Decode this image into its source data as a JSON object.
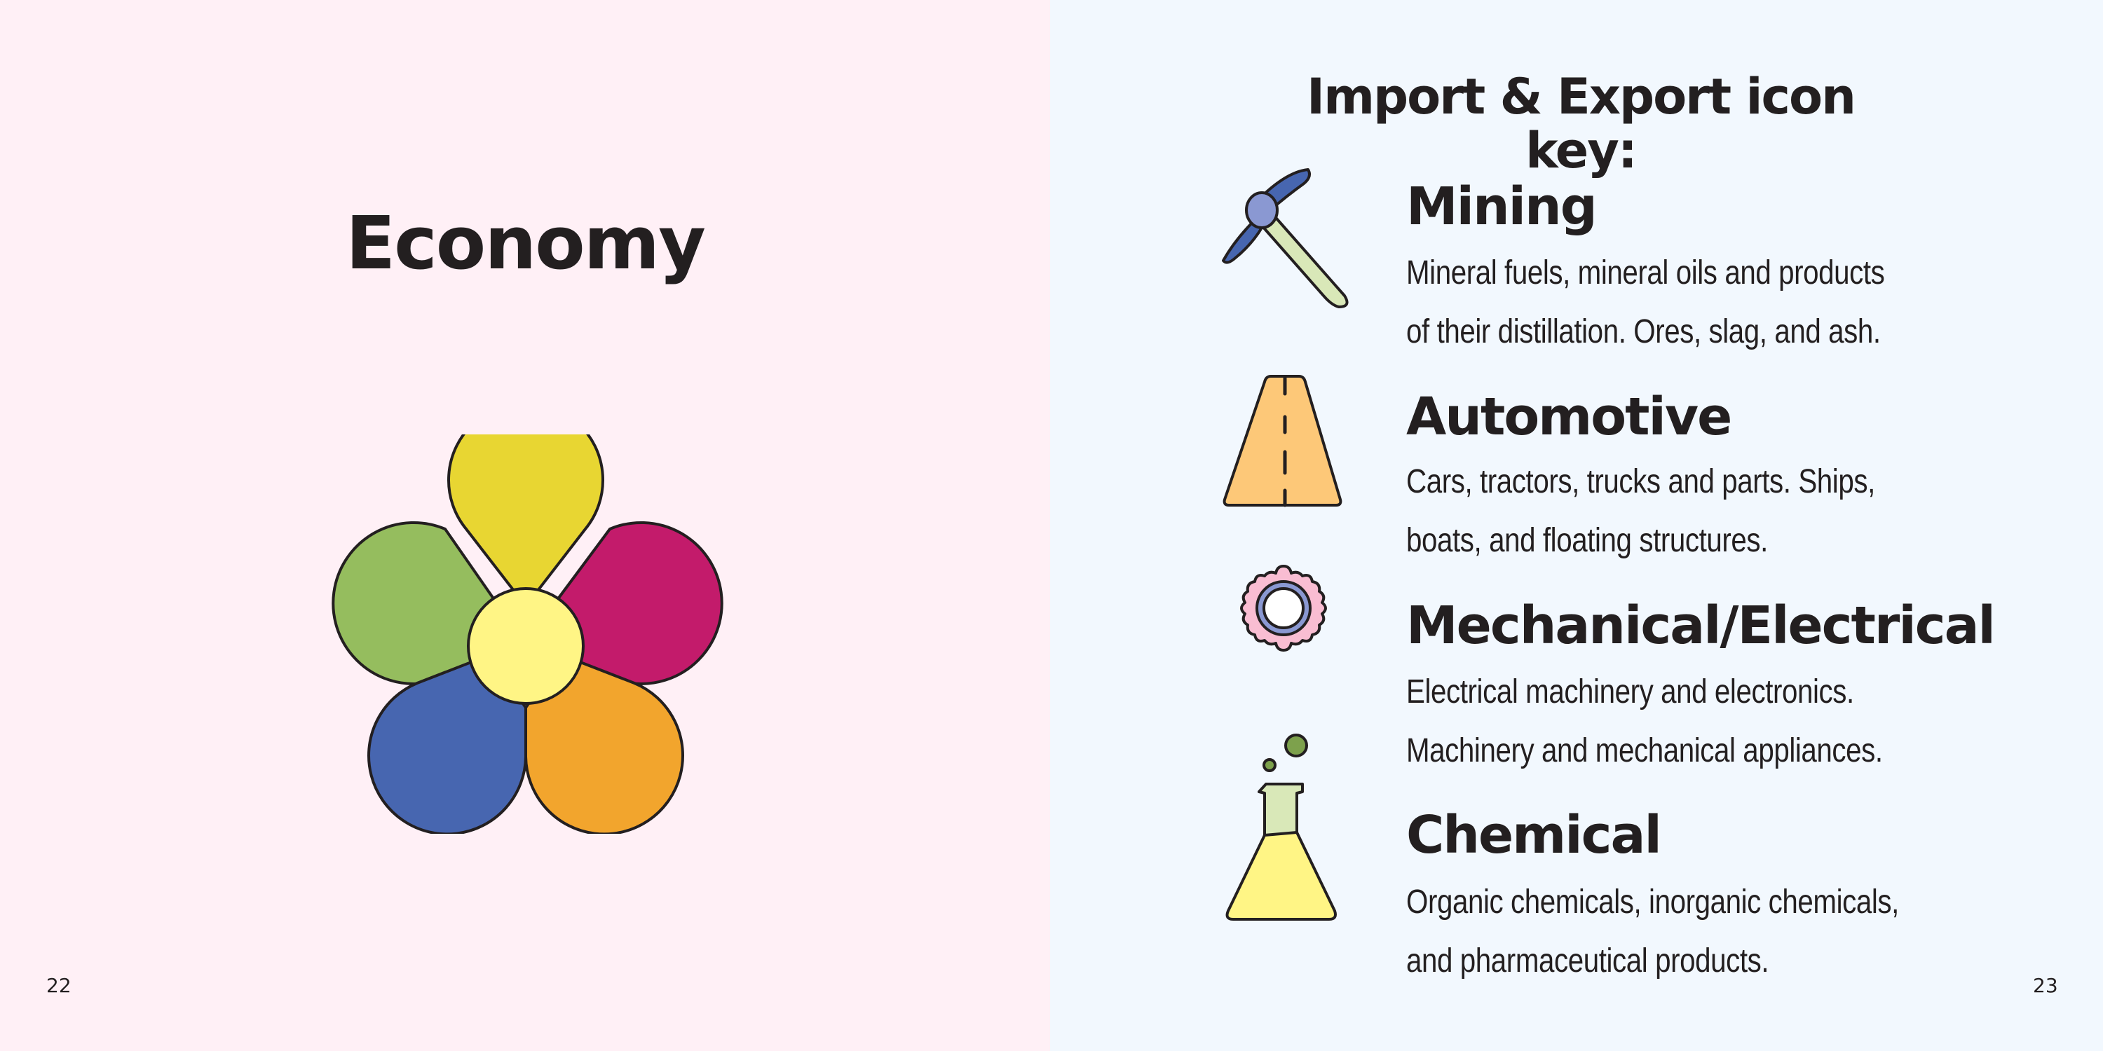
{
  "left_page": {
    "title": "Economy",
    "page_number": "22",
    "flower_colors": {
      "top": "#e8d632",
      "right": "#c31b6b",
      "bottom_right": "#f2a52d",
      "bottom_left": "#4766b0",
      "left": "#95bd5e",
      "center": "#fff585"
    }
  },
  "right_page": {
    "title": "Import & Export icon key:",
    "page_number": "23",
    "items": [
      {
        "icon": "pickaxe-icon",
        "heading": "Mining",
        "lines": [
          "Mineral fuels, mineral oils and products",
          "of their distillation. Ores, slag, and ash."
        ]
      },
      {
        "icon": "road-icon",
        "heading": "Automotive",
        "lines": [
          "Cars, tractors, trucks and parts. Ships,",
          "boats, and floating structures."
        ]
      },
      {
        "icon": "gear-icon",
        "heading": "Mechanical/Electrical",
        "lines": [
          "Electrical machinery and electronics.",
          "Machinery and mechanical appliances."
        ]
      },
      {
        "icon": "flask-icon",
        "heading": "Chemical",
        "lines": [
          "Organic chemicals, inorganic chemicals,",
          "and pharmaceutical products."
        ]
      }
    ]
  }
}
